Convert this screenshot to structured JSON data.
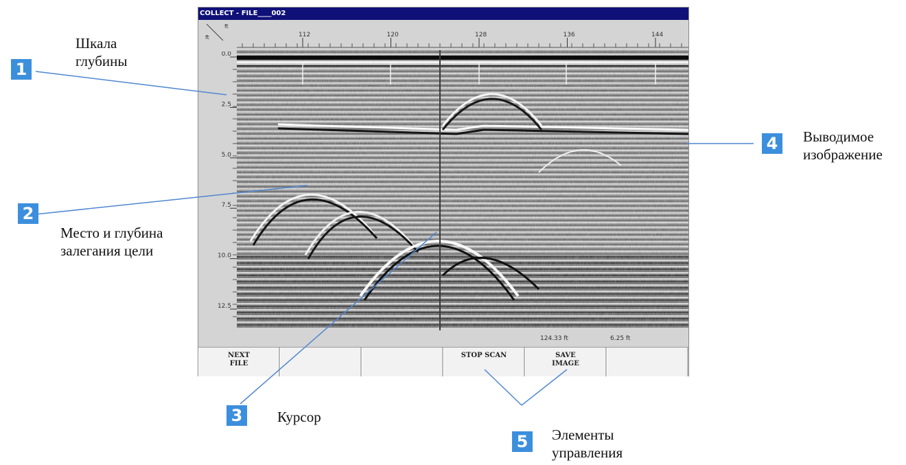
{
  "window": {
    "title": "COLLECT - FILE____002"
  },
  "ruler": {
    "corner_top_unit": "ft",
    "corner_left_unit": "ft",
    "ticks": [
      "112",
      "120",
      "128",
      "136",
      "144"
    ]
  },
  "depth_axis": {
    "labels": [
      "0.0",
      "2.5",
      "5.0",
      "7.5",
      "10.0",
      "12.5"
    ]
  },
  "status": {
    "position": "124.33 ft",
    "depth": "6.25 ft"
  },
  "softkeys": [
    "NEXT\nFILE",
    "",
    "",
    "STOP SCAN",
    "SAVE\nIMAGE",
    ""
  ],
  "annotations": {
    "c1": {
      "num": "1",
      "text": "Шкала\nглубины"
    },
    "c2": {
      "num": "2",
      "text": "Место и глубина\nзалегания цели"
    },
    "c3": {
      "num": "3",
      "text": "Курсор"
    },
    "c4": {
      "num": "4",
      "text": "Выводимое\nизображение"
    },
    "c5": {
      "num": "5",
      "text": "Элементы\nуправления"
    }
  },
  "colors": {
    "callout": "#3c8fdc",
    "leader": "#4f86d2",
    "titlebar": "#0f1078"
  }
}
